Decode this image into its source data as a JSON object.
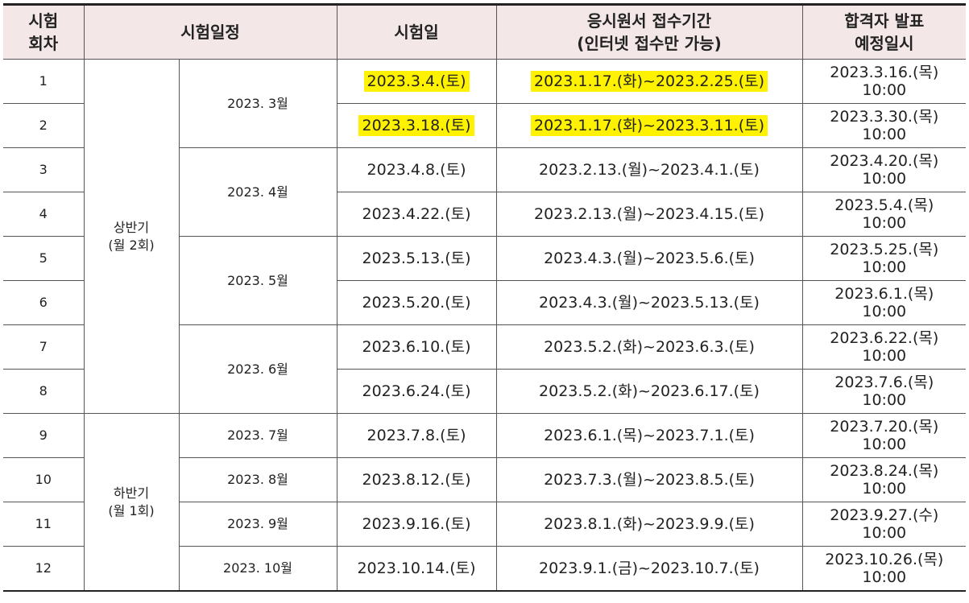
{
  "table": {
    "header": [
      [
        "시험",
        "회차"
      ],
      [
        "시험일정"
      ],
      [
        "시험일"
      ],
      [
        "응시원서 접수기간",
        "(인터넷 접수만 가능)"
      ],
      [
        "합격자 발표",
        "예정일시"
      ]
    ],
    "halves": [
      {
        "label": [
          "상반기",
          "(월 2회)"
        ],
        "months": [
          {
            "label": "2023. 3월",
            "rows": [
              {
                "round": "1",
                "exam_date": "2023.3.4.(토)",
                "period": "2023.1.17.(화)~2023.2.25.(토)",
                "announcement": [
                  "2023.3.16.(목)",
                  "10:00"
                ],
                "highlight": true
              },
              {
                "round": "2",
                "exam_date": "2023.3.18.(토)",
                "period": "2023.1.17.(화)~2023.3.11.(토)",
                "announcement": [
                  "2023.3.30.(목)",
                  "10:00"
                ],
                "highlight": true
              }
            ]
          },
          {
            "label": "2023. 4월",
            "rows": [
              {
                "round": "3",
                "exam_date": "2023.4.8.(토)",
                "period": "2023.2.13.(월)~2023.4.1.(토)",
                "announcement": [
                  "2023.4.20.(목)",
                  "10:00"
                ],
                "highlight": false
              },
              {
                "round": "4",
                "exam_date": "2023.4.22.(토)",
                "period": "2023.2.13.(월)~2023.4.15.(토)",
                "announcement": [
                  "2023.5.4.(목)",
                  "10:00"
                ],
                "highlight": false
              }
            ]
          },
          {
            "label": "2023. 5월",
            "rows": [
              {
                "round": "5",
                "exam_date": "2023.5.13.(토)",
                "period": "2023.4.3.(월)~2023.5.6.(토)",
                "announcement": [
                  "2023.5.25.(목)",
                  "10:00"
                ],
                "highlight": false
              },
              {
                "round": "6",
                "exam_date": "2023.5.20.(토)",
                "period": "2023.4.3.(월)~2023.5.13.(토)",
                "announcement": [
                  "2023.6.1.(목)",
                  "10:00"
                ],
                "highlight": false
              }
            ]
          },
          {
            "label": "2023. 6월",
            "rows": [
              {
                "round": "7",
                "exam_date": "2023.6.10.(토)",
                "period": "2023.5.2.(화)~2023.6.3.(토)",
                "announcement": [
                  "2023.6.22.(목)",
                  "10:00"
                ],
                "highlight": false
              },
              {
                "round": "8",
                "exam_date": "2023.6.24.(토)",
                "period": "2023.5.2.(화)~2023.6.17.(토)",
                "announcement": [
                  "2023.7.6.(목)",
                  "10:00"
                ],
                "highlight": false
              }
            ]
          }
        ]
      },
      {
        "label": [
          "하반기",
          "(월 1회)"
        ],
        "months": [
          {
            "label": "2023. 7월",
            "rows": [
              {
                "round": "9",
                "exam_date": "2023.7.8.(토)",
                "period": "2023.6.1.(목)~2023.7.1.(토)",
                "announcement": [
                  "2023.7.20.(목)",
                  "10:00"
                ],
                "highlight": false
              }
            ]
          },
          {
            "label": "2023. 8월",
            "rows": [
              {
                "round": "10",
                "exam_date": "2023.8.12.(토)",
                "period": "2023.7.3.(월)~2023.8.5.(토)",
                "announcement": [
                  "2023.8.24.(목)",
                  "10:00"
                ],
                "highlight": false
              }
            ]
          },
          {
            "label": "2023. 9월",
            "rows": [
              {
                "round": "11",
                "exam_date": "2023.9.16.(토)",
                "period": "2023.8.1.(화)~2023.9.9.(토)",
                "announcement": [
                  "2023.9.27.(수)",
                  "10:00"
                ],
                "highlight": false
              }
            ]
          },
          {
            "label": "2023. 10월",
            "rows": [
              {
                "round": "12",
                "exam_date": "2023.10.14.(토)",
                "period": "2023.9.1.(금)~2023.10.7.(토)",
                "announcement": [
                  "2023.10.26.(목)",
                  "10:00"
                ],
                "highlight": false
              }
            ]
          }
        ]
      }
    ]
  }
}
